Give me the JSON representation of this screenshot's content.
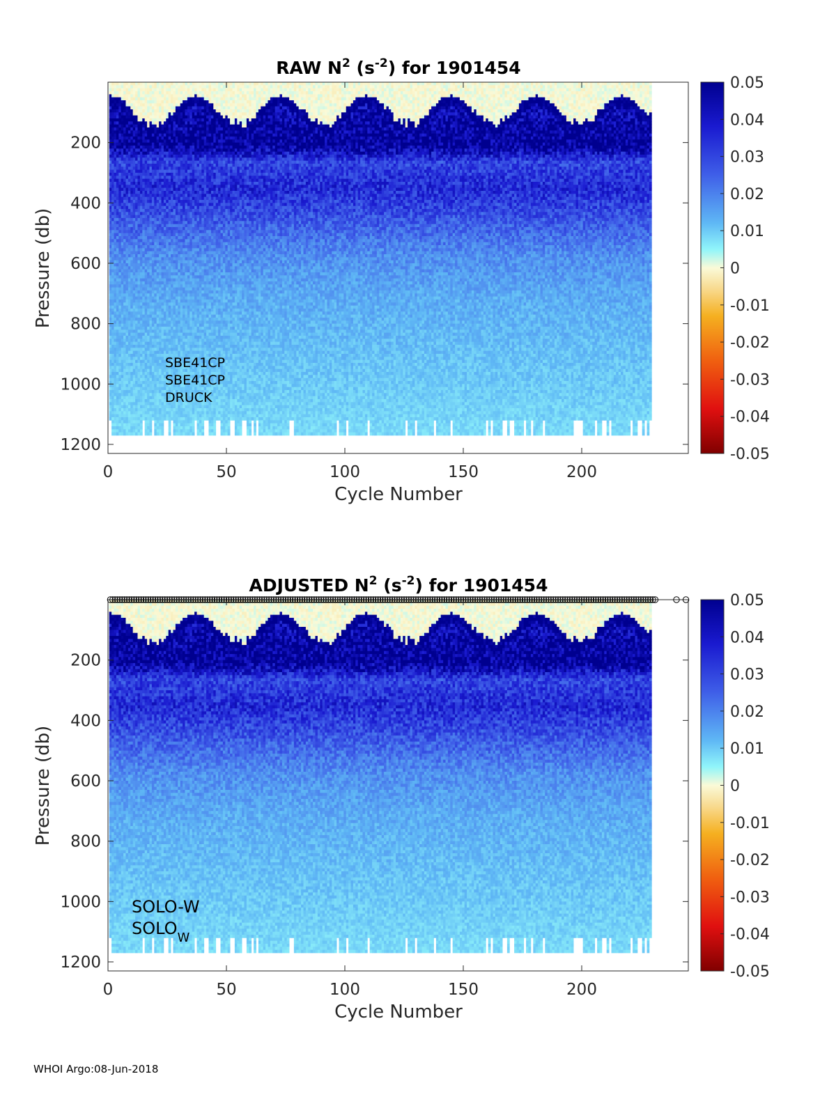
{
  "chart_data": [
    {
      "type": "heatmap",
      "title_prefix": "RAW N",
      "title_sup1": "2",
      "title_mid": " (s",
      "title_sup2": "-2",
      "title_suffix": ") for 1901454",
      "xlabel": "Cycle Number",
      "ylabel": "Pressure (db)",
      "xlim": [
        0,
        245
      ],
      "ylim": [
        1230,
        0
      ],
      "xticks": [
        0,
        50,
        100,
        150,
        200
      ],
      "yticks": [
        200,
        400,
        600,
        800,
        1000,
        1200
      ],
      "clim": [
        -0.05,
        0.05
      ],
      "colorbar_ticks": [
        "0.05",
        "0.04",
        "0.03",
        "0.02",
        "0.01",
        "0",
        "-0.01",
        "-0.02",
        "-0.03",
        "-0.04",
        "-0.05"
      ],
      "colorbar_values": [
        0.05,
        0.04,
        0.03,
        0.02,
        0.01,
        0,
        -0.01,
        -0.02,
        -0.03,
        -0.04,
        -0.05
      ],
      "cycles": [
        1,
        229
      ],
      "pressure_range": [
        0,
        1170
      ],
      "profile": [
        {
          "p": 100,
          "v": 0.045
        },
        {
          "p": 200,
          "v": 0.05
        },
        {
          "p": 260,
          "v": 0.03
        },
        {
          "p": 350,
          "v": 0.035
        },
        {
          "p": 470,
          "v": 0.025
        },
        {
          "p": 570,
          "v": 0.018
        },
        {
          "p": 700,
          "v": 0.014
        },
        {
          "p": 900,
          "v": 0.011
        },
        {
          "p": 1170,
          "v": 0.008
        }
      ],
      "annotations": [
        {
          "text": "SBE41CP"
        },
        {
          "text": "SBE41CP"
        },
        {
          "text": "DRUCK"
        }
      ]
    },
    {
      "type": "heatmap",
      "title_prefix": "ADJUSTED N",
      "title_sup1": "2",
      "title_mid": " (s",
      "title_sup2": "-2",
      "title_suffix": ") for 1901454",
      "xlabel": "Cycle Number",
      "ylabel": "Pressure (db)",
      "xlim": [
        0,
        245
      ],
      "ylim": [
        1230,
        0
      ],
      "xticks": [
        0,
        50,
        100,
        150,
        200
      ],
      "yticks": [
        200,
        400,
        600,
        800,
        1000,
        1200
      ],
      "clim": [
        -0.05,
        0.05
      ],
      "colorbar_ticks": [
        "0.05",
        "0.04",
        "0.03",
        "0.02",
        "0.01",
        "0",
        "-0.01",
        "-0.02",
        "-0.03",
        "-0.04",
        "-0.05"
      ],
      "colorbar_values": [
        0.05,
        0.04,
        0.03,
        0.02,
        0.01,
        0,
        -0.01,
        -0.02,
        -0.03,
        -0.04,
        -0.05
      ],
      "cycles": [
        1,
        229
      ],
      "pressure_range": [
        0,
        1170
      ],
      "profile": [
        {
          "p": 100,
          "v": 0.045
        },
        {
          "p": 200,
          "v": 0.05
        },
        {
          "p": 260,
          "v": 0.03
        },
        {
          "p": 350,
          "v": 0.035
        },
        {
          "p": 470,
          "v": 0.025
        },
        {
          "p": 570,
          "v": 0.018
        },
        {
          "p": 700,
          "v": 0.014
        },
        {
          "p": 900,
          "v": 0.011
        },
        {
          "p": 1170,
          "v": 0.008
        }
      ],
      "qc_markers": {
        "symbol": "o",
        "x_range": [
          1,
          231
        ],
        "extra_x": [
          240,
          244
        ]
      },
      "annotations": [
        {
          "text": "SOLO-W"
        },
        {
          "text": "SOLO",
          "sub": "W"
        }
      ]
    }
  ],
  "footer": "WHOI Argo:08-Jun-2018"
}
